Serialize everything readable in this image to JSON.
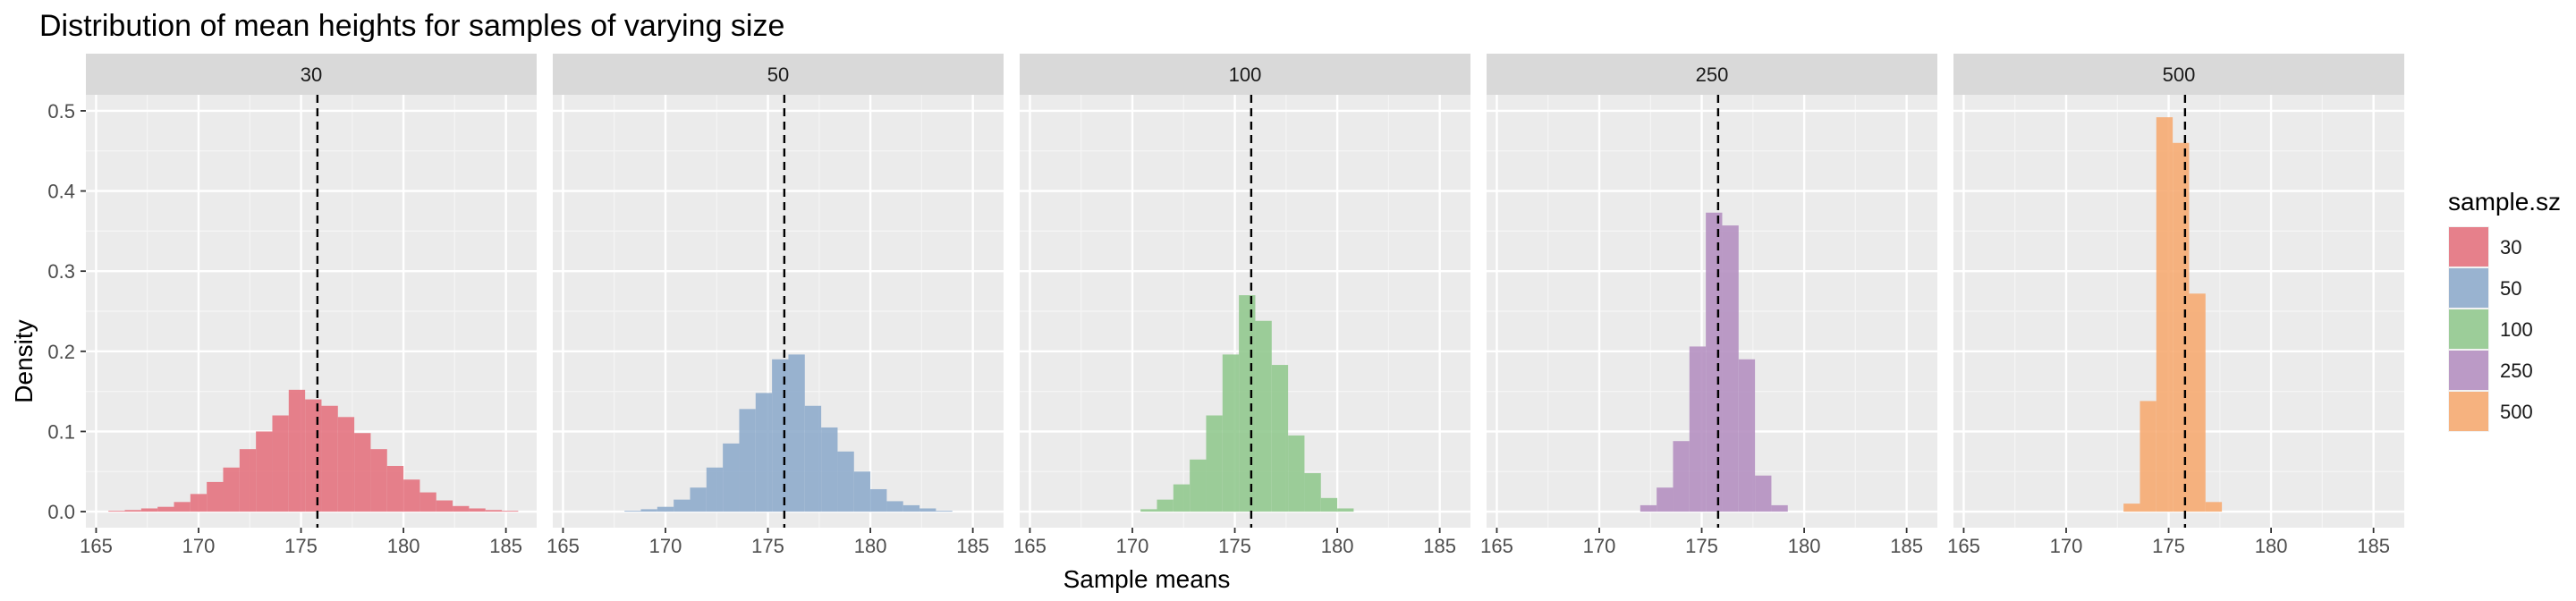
{
  "chart_data": {
    "type": "histogram",
    "title": "Distribution of mean heights for samples of varying size",
    "xlabel": "Sample means",
    "ylabel": "Density",
    "xlim": [
      164.5,
      186.5
    ],
    "ylim": [
      -0.02,
      0.52
    ],
    "xticks": [
      165,
      170,
      175,
      180,
      185
    ],
    "yticks": [
      0.0,
      0.1,
      0.2,
      0.3,
      0.4,
      0.5
    ],
    "ytick_labels": [
      "0.0",
      "0.1",
      "0.2",
      "0.3",
      "0.4",
      "0.5"
    ],
    "bin_width": 0.8,
    "mean_line": 175.8,
    "grid": true,
    "legend": {
      "title": "sample.sz",
      "position": "right",
      "entries": [
        {
          "label": "30",
          "color": "#e4707c"
        },
        {
          "label": "50",
          "color": "#8caacb"
        },
        {
          "label": "100",
          "color": "#90c78c"
        },
        {
          "label": "250",
          "color": "#b38dbf"
        },
        {
          "label": "500",
          "color": "#f6a86e"
        }
      ]
    },
    "panels": [
      {
        "label": "30",
        "color": "#e4707c",
        "bins": [
          {
            "x": 166.0,
            "density": 0.001
          },
          {
            "x": 166.8,
            "density": 0.002
          },
          {
            "x": 167.6,
            "density": 0.004
          },
          {
            "x": 168.4,
            "density": 0.006
          },
          {
            "x": 169.2,
            "density": 0.012
          },
          {
            "x": 170.0,
            "density": 0.022
          },
          {
            "x": 170.8,
            "density": 0.037
          },
          {
            "x": 171.6,
            "density": 0.055
          },
          {
            "x": 172.4,
            "density": 0.078
          },
          {
            "x": 173.2,
            "density": 0.1
          },
          {
            "x": 174.0,
            "density": 0.12
          },
          {
            "x": 174.8,
            "density": 0.152
          },
          {
            "x": 175.6,
            "density": 0.14
          },
          {
            "x": 176.4,
            "density": 0.132
          },
          {
            "x": 177.2,
            "density": 0.118
          },
          {
            "x": 178.0,
            "density": 0.098
          },
          {
            "x": 178.8,
            "density": 0.078
          },
          {
            "x": 179.6,
            "density": 0.057
          },
          {
            "x": 180.4,
            "density": 0.04
          },
          {
            "x": 181.2,
            "density": 0.024
          },
          {
            "x": 182.0,
            "density": 0.014
          },
          {
            "x": 182.8,
            "density": 0.007
          },
          {
            "x": 183.6,
            "density": 0.004
          },
          {
            "x": 184.4,
            "density": 0.002
          },
          {
            "x": 185.2,
            "density": 0.001
          }
        ]
      },
      {
        "label": "50",
        "color": "#8caacb",
        "bins": [
          {
            "x": 168.4,
            "density": 0.001
          },
          {
            "x": 169.2,
            "density": 0.003
          },
          {
            "x": 170.0,
            "density": 0.006
          },
          {
            "x": 170.8,
            "density": 0.015
          },
          {
            "x": 171.6,
            "density": 0.03
          },
          {
            "x": 172.4,
            "density": 0.055
          },
          {
            "x": 173.2,
            "density": 0.085
          },
          {
            "x": 174.0,
            "density": 0.128
          },
          {
            "x": 174.8,
            "density": 0.148
          },
          {
            "x": 175.6,
            "density": 0.19
          },
          {
            "x": 176.4,
            "density": 0.196
          },
          {
            "x": 177.2,
            "density": 0.132
          },
          {
            "x": 178.0,
            "density": 0.105
          },
          {
            "x": 178.8,
            "density": 0.075
          },
          {
            "x": 179.6,
            "density": 0.05
          },
          {
            "x": 180.4,
            "density": 0.028
          },
          {
            "x": 181.2,
            "density": 0.013
          },
          {
            "x": 182.0,
            "density": 0.008
          },
          {
            "x": 182.8,
            "density": 0.004
          },
          {
            "x": 183.6,
            "density": 0.001
          }
        ]
      },
      {
        "label": "100",
        "color": "#90c78c",
        "bins": [
          {
            "x": 170.8,
            "density": 0.003
          },
          {
            "x": 171.6,
            "density": 0.015
          },
          {
            "x": 172.4,
            "density": 0.034
          },
          {
            "x": 173.2,
            "density": 0.065
          },
          {
            "x": 174.0,
            "density": 0.12
          },
          {
            "x": 174.8,
            "density": 0.196
          },
          {
            "x": 175.6,
            "density": 0.27
          },
          {
            "x": 176.4,
            "density": 0.238
          },
          {
            "x": 177.2,
            "density": 0.183
          },
          {
            "x": 178.0,
            "density": 0.095
          },
          {
            "x": 178.8,
            "density": 0.048
          },
          {
            "x": 179.6,
            "density": 0.017
          },
          {
            "x": 180.4,
            "density": 0.004
          }
        ]
      },
      {
        "label": "250",
        "color": "#b38dbf",
        "bins": [
          {
            "x": 172.4,
            "density": 0.008
          },
          {
            "x": 173.2,
            "density": 0.03
          },
          {
            "x": 174.0,
            "density": 0.088
          },
          {
            "x": 174.8,
            "density": 0.206
          },
          {
            "x": 175.6,
            "density": 0.373
          },
          {
            "x": 176.4,
            "density": 0.357
          },
          {
            "x": 177.2,
            "density": 0.19
          },
          {
            "x": 178.0,
            "density": 0.045
          },
          {
            "x": 178.8,
            "density": 0.008
          }
        ]
      },
      {
        "label": "500",
        "color": "#f6a86e",
        "bins": [
          {
            "x": 173.2,
            "density": 0.01
          },
          {
            "x": 174.0,
            "density": 0.138
          },
          {
            "x": 174.8,
            "density": 0.492
          },
          {
            "x": 175.6,
            "density": 0.46
          },
          {
            "x": 176.4,
            "density": 0.272
          },
          {
            "x": 177.2,
            "density": 0.012
          }
        ]
      }
    ]
  }
}
